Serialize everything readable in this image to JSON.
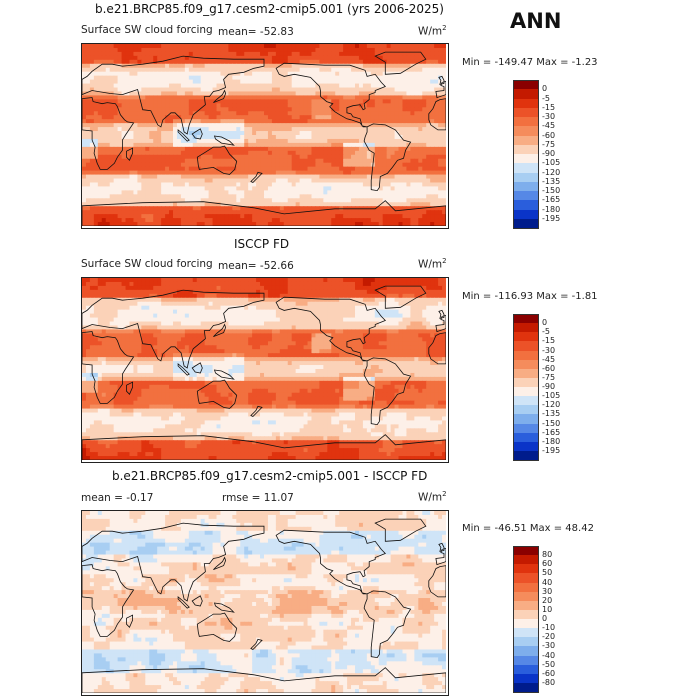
{
  "season": "ANN",
  "panels": [
    {
      "title": "b.e21.BRCP85.f09_g17.cesm2-cmip5.001 (yrs 2006-2025)",
      "variable": "Surface SW cloud forcing",
      "mean_text": "mean= -52.83",
      "rmse_text": "",
      "units_base": "W/m",
      "units_exp": "2",
      "minmax": "Min = -149.47 Max =   -1.23"
    },
    {
      "title": "ISCCP FD",
      "variable": "Surface SW cloud forcing",
      "mean_text": "mean= -52.66",
      "rmse_text": "",
      "units_base": "W/m",
      "units_exp": "2",
      "minmax": "Min = -116.93 Max =  -1.81"
    },
    {
      "title": "b.e21.BRCP85.f09_g17.cesm2-cmip5.001 - ISCCP FD",
      "variable": "",
      "mean_text": "mean =   -0.17",
      "rmse_text": "rmse =   11.07",
      "units_base": "W/m",
      "units_exp": "2",
      "minmax": "Min = -46.51 Max =  48.42"
    }
  ],
  "chart_data": [
    {
      "type": "heatmap",
      "title": "b.e21.BRCP85.f09_g17.cesm2-cmip5.001 (yrs 2006-2025)",
      "field": "Surface SW cloud forcing",
      "units": "W/m^2",
      "mean": -52.83,
      "min": -149.47,
      "max": -1.23,
      "colorbar_levels": [
        "0",
        "-5",
        "-15",
        "-30",
        "-45",
        "-60",
        "-75",
        "-90",
        "-105",
        "-120",
        "-135",
        "-150",
        "-165",
        "-180",
        "-195"
      ],
      "colorbar_colors": [
        "#8a0000",
        "#c41a00",
        "#e0330e",
        "#ec5228",
        "#f2703f",
        "#f58c5c",
        "#f8ad84",
        "#fbd2b8",
        "#fdf0e8",
        "#cfe4f7",
        "#a8cef2",
        "#7eaeec",
        "#5688e6",
        "#2a5edc",
        "#0a34c8",
        "#001c8c"
      ]
    },
    {
      "type": "heatmap",
      "title": "ISCCP FD",
      "field": "Surface SW cloud forcing",
      "units": "W/m^2",
      "mean": -52.66,
      "min": -116.93,
      "max": -1.81,
      "colorbar_levels": [
        "0",
        "-5",
        "-15",
        "-30",
        "-45",
        "-60",
        "-75",
        "-90",
        "-105",
        "-120",
        "-135",
        "-150",
        "-165",
        "-180",
        "-195"
      ],
      "colorbar_colors": [
        "#8a0000",
        "#c41a00",
        "#e0330e",
        "#ec5228",
        "#f2703f",
        "#f58c5c",
        "#f8ad84",
        "#fbd2b8",
        "#fdf0e8",
        "#cfe4f7",
        "#a8cef2",
        "#7eaeec",
        "#5688e6",
        "#2a5edc",
        "#0a34c8",
        "#001c8c"
      ]
    },
    {
      "type": "heatmap",
      "title": "b.e21.BRCP85.f09_g17.cesm2-cmip5.001 - ISCCP FD",
      "field": "difference",
      "units": "W/m^2",
      "mean": -0.17,
      "rmse": 11.07,
      "min": -46.51,
      "max": 48.42,
      "colorbar_levels": [
        "80",
        "60",
        "50",
        "40",
        "30",
        "20",
        "10",
        "0",
        "-10",
        "-20",
        "-30",
        "-40",
        "-50",
        "-60",
        "-80"
      ],
      "colorbar_colors": [
        "#8a0000",
        "#c41a00",
        "#e0330e",
        "#ec5228",
        "#f2703f",
        "#f58c5c",
        "#f8ad84",
        "#fbd2b8",
        "#fdf0e8",
        "#cfe4f7",
        "#a8cef2",
        "#7eaeec",
        "#5688e6",
        "#2a5edc",
        "#0a34c8",
        "#001c8c"
      ]
    }
  ]
}
